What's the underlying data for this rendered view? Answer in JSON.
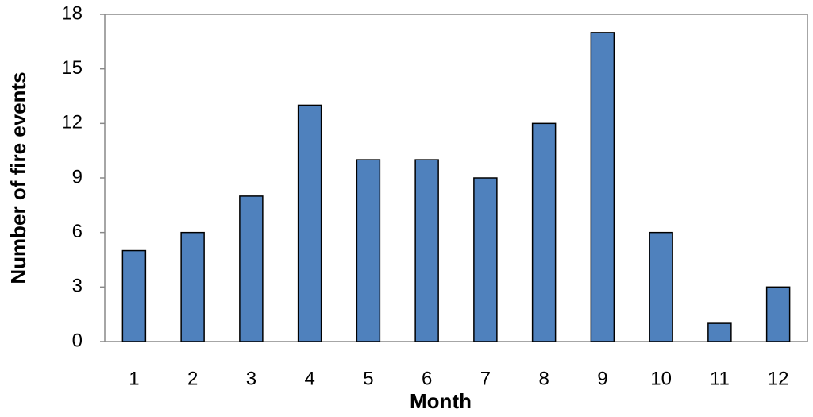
{
  "chart_data": {
    "type": "bar",
    "x_label": "Month",
    "y_label": "Number of fire events",
    "categories": [
      "1",
      "2",
      "3",
      "4",
      "5",
      "6",
      "7",
      "8",
      "9",
      "10",
      "11",
      "12"
    ],
    "values": [
      5,
      6,
      8,
      13,
      10,
      10,
      9,
      12,
      17,
      6,
      1,
      3
    ],
    "color": "#4f81bd",
    "ylim": [
      0,
      18
    ],
    "yticks": [
      0,
      3,
      6,
      9,
      12,
      15,
      18
    ],
    "grid": false
  }
}
